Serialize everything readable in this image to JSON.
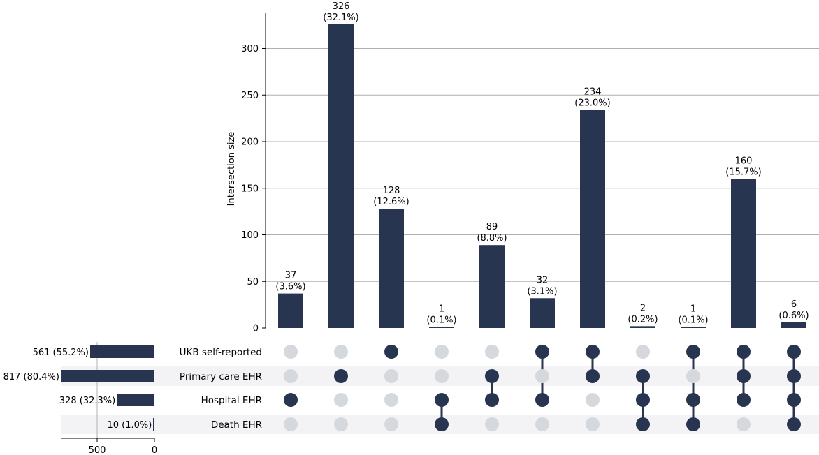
{
  "chart_data": {
    "type": "bar",
    "subtype": "upset",
    "ylabel": "Intersection size",
    "ylim": [
      0,
      340
    ],
    "yticks": [
      0,
      50,
      100,
      150,
      200,
      250,
      300
    ],
    "grid": true,
    "bar_color": "#283550",
    "inactive_dot_color": "#d5d8dd",
    "shade_color": "#f3f3f5",
    "sets": [
      {
        "name": "UKB self-reported",
        "size": 561,
        "label": "561 (55.2%)"
      },
      {
        "name": "Primary care EHR",
        "size": 817,
        "label": "817 (80.4%)"
      },
      {
        "name": "Hospital EHR",
        "size": 328,
        "label": "328 (32.3%)"
      },
      {
        "name": "Death EHR",
        "size": 10,
        "label": "10 (1.0%)"
      }
    ],
    "set_size_axis": {
      "xlim": [
        0,
        817
      ],
      "ticks": [
        500,
        0
      ]
    },
    "intersections": [
      {
        "count": 37,
        "label": "37",
        "pct": "(3.6%)",
        "members": [
          0,
          0,
          1,
          0
        ]
      },
      {
        "count": 326,
        "label": "326",
        "pct": "(32.1%)",
        "members": [
          0,
          1,
          0,
          0
        ]
      },
      {
        "count": 128,
        "label": "128",
        "pct": "(12.6%)",
        "members": [
          1,
          0,
          0,
          0
        ]
      },
      {
        "count": 1,
        "label": "1",
        "pct": "(0.1%)",
        "members": [
          0,
          0,
          1,
          1
        ]
      },
      {
        "count": 89,
        "label": "89",
        "pct": "(8.8%)",
        "members": [
          0,
          1,
          1,
          0
        ]
      },
      {
        "count": 32,
        "label": "32",
        "pct": "(3.1%)",
        "members": [
          1,
          0,
          1,
          0
        ]
      },
      {
        "count": 234,
        "label": "234",
        "pct": "(23.0%)",
        "members": [
          1,
          1,
          0,
          0
        ]
      },
      {
        "count": 2,
        "label": "2",
        "pct": "(0.2%)",
        "members": [
          0,
          1,
          1,
          1
        ]
      },
      {
        "count": 1,
        "label": "1",
        "pct": "(0.1%)",
        "members": [
          1,
          0,
          1,
          1
        ]
      },
      {
        "count": 160,
        "label": "160",
        "pct": "(15.7%)",
        "members": [
          1,
          1,
          1,
          0
        ]
      },
      {
        "count": 6,
        "label": "6",
        "pct": "(0.6%)",
        "members": [
          1,
          1,
          1,
          1
        ]
      }
    ]
  }
}
